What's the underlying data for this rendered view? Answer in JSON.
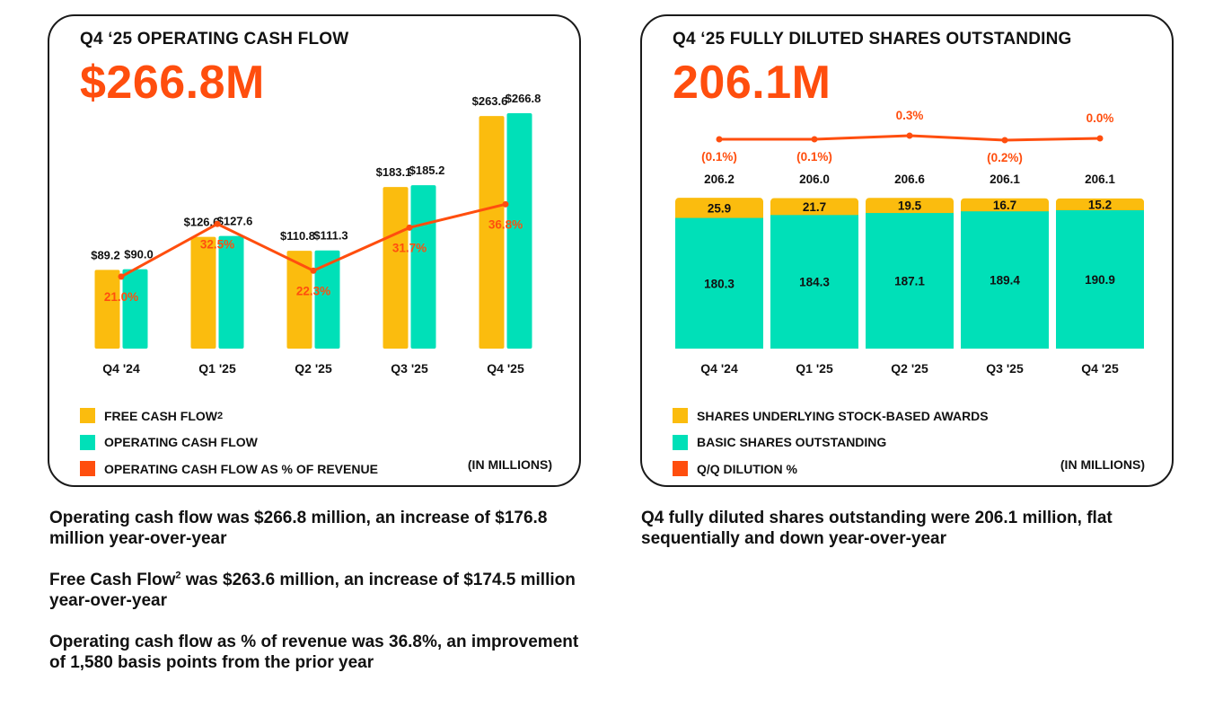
{
  "colors": {
    "free_cash_flow": "#fbbc0e",
    "operating_cash_flow": "#00e0b8",
    "pct_line": "#ff4e0e",
    "accent": "#ff4e0e"
  },
  "left_card": {
    "title": "Q4 ‘25 OPERATING CASH FLOW",
    "big_value": "$266.8M",
    "units": "(IN MILLIONS)",
    "legend": [
      {
        "label": "FREE CASH FLOW",
        "sup": "2",
        "color": "#fbbc0e"
      },
      {
        "label": "OPERATING CASH FLOW",
        "sup": "",
        "color": "#00e0b8"
      },
      {
        "label": "OPERATING CASH FLOW AS % OF REVENUE",
        "sup": "",
        "color": "#ff4e0e"
      }
    ]
  },
  "right_card": {
    "title": "Q4 ‘25 FULLY DILUTED SHARES OUTSTANDING",
    "big_value": "206.1M",
    "units": "(IN MILLIONS)",
    "legend": [
      {
        "label": "SHARES UNDERLYING STOCK-BASED AWARDS",
        "sup": "",
        "color": "#fbbc0e"
      },
      {
        "label": "BASIC SHARES OUTSTANDING",
        "sup": "",
        "color": "#00e0b8"
      },
      {
        "label": "Q/Q DILUTION %",
        "sup": "",
        "color": "#ff4e0e"
      }
    ]
  },
  "chart_data": [
    {
      "type": "bar",
      "title": "Q4 ‘25 OPERATING CASH FLOW",
      "categories": [
        "Q4 '24",
        "Q1 '25",
        "Q2 '25",
        "Q3 '25",
        "Q4 '25"
      ],
      "series": [
        {
          "name": "FREE CASH FLOW",
          "values": [
            89.2,
            126.6,
            110.8,
            183.1,
            263.6
          ],
          "labels": [
            "$89.2",
            "$126.6",
            "$110.8",
            "$183.1",
            "$263.6"
          ]
        },
        {
          "name": "OPERATING CASH FLOW",
          "values": [
            90.0,
            127.6,
            111.3,
            185.2,
            266.8
          ],
          "labels": [
            "$90.0",
            "$127.6",
            "$111.3",
            "$185.2",
            "$266.8"
          ]
        }
      ],
      "line": {
        "name": "OPERATING CASH FLOW AS % OF REVENUE",
        "values": [
          21.0,
          32.5,
          22.3,
          31.7,
          36.8
        ],
        "labels": [
          "21.0%",
          "32.5%",
          "22.3%",
          "31.7%",
          "36.8%"
        ]
      },
      "ylim": [
        0,
        280
      ],
      "units": "(IN MILLIONS)"
    },
    {
      "type": "bar",
      "stacked": true,
      "title": "Q4 ‘25 FULLY DILUTED SHARES OUTSTANDING",
      "categories": [
        "Q4 '24",
        "Q1 '25",
        "Q2 '25",
        "Q3 '25",
        "Q4 '25"
      ],
      "series": [
        {
          "name": "BASIC SHARES OUTSTANDING",
          "values": [
            180.3,
            184.3,
            187.1,
            189.4,
            190.9
          ],
          "labels": [
            "180.3",
            "184.3",
            "187.1",
            "189.4",
            "190.9"
          ]
        },
        {
          "name": "SHARES UNDERLYING STOCK-BASED AWARDS",
          "values": [
            25.9,
            21.7,
            19.5,
            16.7,
            15.2
          ],
          "labels": [
            "25.9",
            "21.7",
            "19.5",
            "16.7",
            "15.2"
          ]
        }
      ],
      "totals": [
        "206.2",
        "206.0",
        "206.6",
        "206.1",
        "206.1"
      ],
      "line": {
        "name": "Q/Q DILUTION %",
        "values": [
          -0.1,
          -0.1,
          0.3,
          -0.2,
          0.0
        ],
        "labels": [
          "(0.1%)",
          "(0.1%)",
          "0.3%",
          "(0.2%)",
          "0.0%"
        ]
      },
      "units": "(IN MILLIONS)"
    }
  ],
  "captions": {
    "left": [
      {
        "text": "Operating cash flow was $266.8 million, an increase of $176.8 million year-over-year",
        "sup": "",
        "rest": ""
      },
      {
        "text": "Free Cash Flow",
        "sup": "2",
        "rest": " was $263.6 million, an increase of $174.5 million year-over-year"
      },
      {
        "text": "Operating cash flow as % of revenue was 36.8%, an improvement of 1,580 basis points from the prior year",
        "sup": "",
        "rest": ""
      }
    ],
    "right": [
      {
        "text": "Q4 fully diluted shares outstanding were 206.1 million, flat sequentially and down year-over-year",
        "sup": "",
        "rest": ""
      }
    ]
  }
}
